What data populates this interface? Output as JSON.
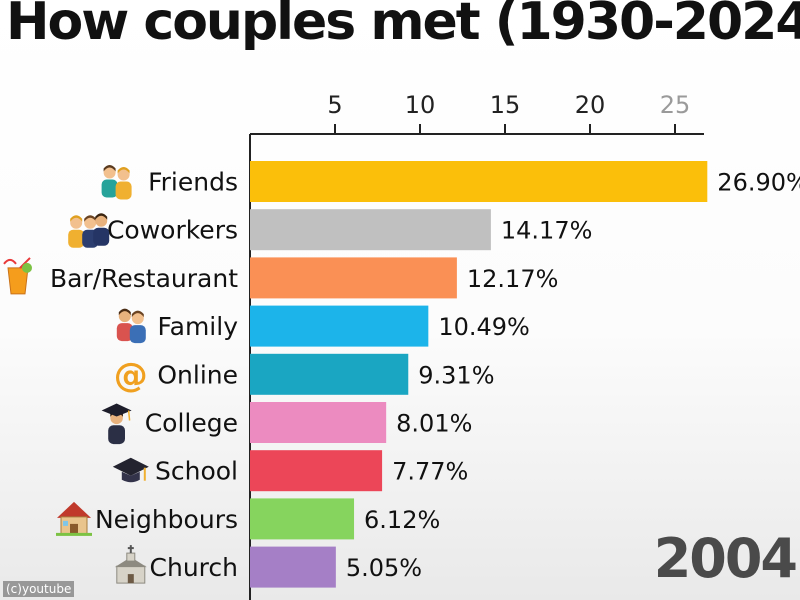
{
  "title": "How couples met (1930-2024)",
  "year_label": "2004",
  "watermark": "(c)youtube",
  "chart_data": {
    "type": "bar",
    "orientation": "horizontal",
    "title": "How couples met (1930-2024)",
    "xlabel": "",
    "ylabel": "",
    "xlim": [
      0,
      27
    ],
    "x_ticks": [
      5,
      10,
      15,
      20,
      25
    ],
    "x_axis_position": "top",
    "grid": false,
    "legend": "none",
    "categories": [
      "Friends",
      "Coworkers",
      "Bar/Restaurant",
      "Family",
      "Online",
      "College",
      "School",
      "Neighbours",
      "Church"
    ],
    "values": [
      26.9,
      14.17,
      12.17,
      10.49,
      9.31,
      8.01,
      7.77,
      6.12,
      5.05
    ],
    "value_labels": [
      "26.90%",
      "14.17%",
      "12.17%",
      "10.49%",
      "9.31%",
      "8.01%",
      "7.77%",
      "6.12%",
      "5.05%"
    ],
    "colors": [
      "#FBBF0A",
      "#C0C0C0",
      "#FA9055",
      "#1CB4EA",
      "#1AA6C2",
      "#EC8BC0",
      "#EC4658",
      "#86D45E",
      "#A57FC6"
    ],
    "icons": [
      "couple-icon",
      "coworkers-icon",
      "tropical-drink-icon",
      "family-icon",
      "at-sign-icon",
      "graduate-icon",
      "graduation-cap-icon",
      "house-icon",
      "church-icon"
    ]
  }
}
